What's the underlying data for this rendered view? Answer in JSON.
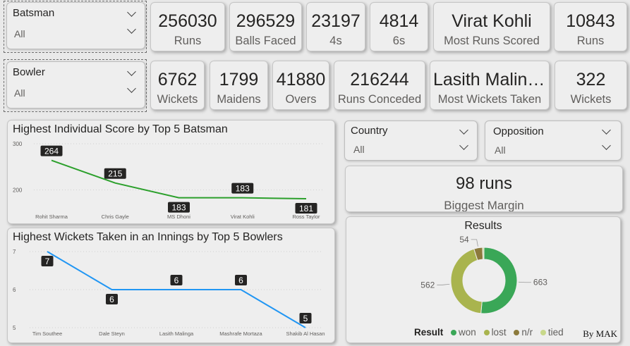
{
  "filters": {
    "batsman": {
      "title": "Batsman",
      "value": "All"
    },
    "bowler": {
      "title": "Bowler",
      "value": "All"
    },
    "country": {
      "title": "Country",
      "value": "All"
    },
    "opposition": {
      "title": "Opposition",
      "value": "All"
    }
  },
  "batting_kpis": [
    {
      "value": "256030",
      "label": "Runs"
    },
    {
      "value": "296529",
      "label": "Balls Faced"
    },
    {
      "value": "23197",
      "label": "4s"
    },
    {
      "value": "4814",
      "label": "6s"
    },
    {
      "value": "Virat Kohli",
      "label": "Most Runs Scored"
    },
    {
      "value": "10843",
      "label": "Runs"
    }
  ],
  "bowling_kpis": [
    {
      "value": "6762",
      "label": "Wickets"
    },
    {
      "value": "1799",
      "label": "Maidens"
    },
    {
      "value": "41880",
      "label": "Overs"
    },
    {
      "value": "216244",
      "label": "Runs Conceded"
    },
    {
      "value": "Lasith Malinga",
      "label": "Most Wickets Taken"
    },
    {
      "value": "322",
      "label": "Wickets"
    }
  ],
  "margin_card": {
    "value": "98 runs",
    "label": "Biggest Margin"
  },
  "credit": "By MAK",
  "colors": {
    "batting_line": "#2ca02c",
    "bowling_line": "#2196f3",
    "won": "#3aa757",
    "lost": "#a9b44e",
    "nr": "#8c7a3c",
    "tied": "#c8d88a"
  },
  "chart_data": [
    {
      "type": "line",
      "title": "Highest Individual Score by Top 5 Batsman",
      "categories": [
        "Rohit Sharma",
        "Chris Gayle",
        "MS Dhoni",
        "Virat Kohli",
        "Ross Taylor"
      ],
      "values": [
        264,
        215,
        183,
        183,
        181
      ],
      "yticks": [
        "300",
        "200"
      ],
      "ylim": [
        155,
        300
      ]
    },
    {
      "type": "line",
      "title": "Highest Wickets Taken in an Innings by Top 5 Bowlers",
      "categories": [
        "Tim Southee",
        "Dale Steyn",
        "Lasith Malinga",
        "Mashrafe Mortaza",
        "Shakib Al Hasan"
      ],
      "values": [
        7,
        6,
        6,
        6,
        5
      ],
      "yticks": [
        "7",
        "6",
        "5"
      ],
      "ylim": [
        5,
        7
      ]
    },
    {
      "type": "pie",
      "title": "Results",
      "legend_title": "Result",
      "slices": [
        {
          "name": "won",
          "value": 663
        },
        {
          "name": "lost",
          "value": 562
        },
        {
          "name": "n/r",
          "value": 54
        },
        {
          "name": "tied",
          "value": 9
        }
      ]
    }
  ]
}
